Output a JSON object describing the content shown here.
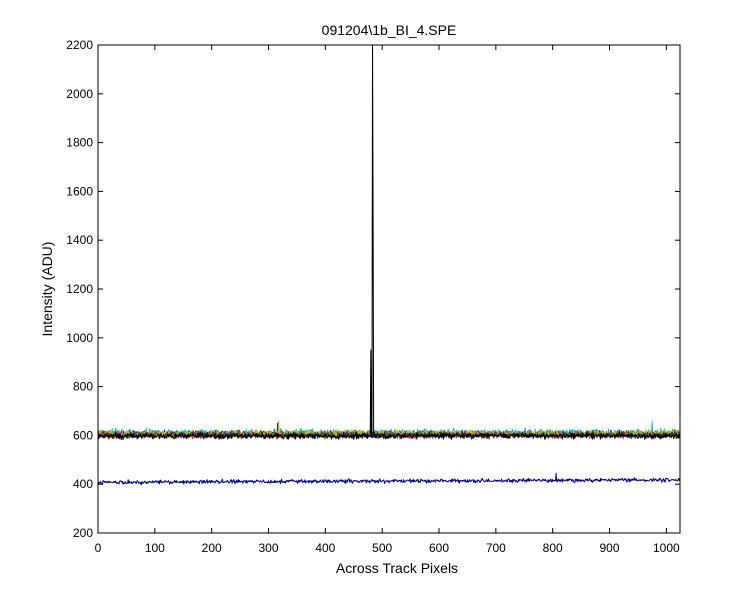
{
  "chart_data": {
    "type": "line",
    "title": "091204\\1b_BI_4.SPE",
    "xlabel": "Across Track Pixels",
    "ylabel": "Intensity (ADU)",
    "xlim": [
      0,
      1024
    ],
    "ylim": [
      200,
      2200
    ],
    "xticks": [
      "0",
      "100",
      "200",
      "300",
      "400",
      "500",
      "600",
      "700",
      "800",
      "900",
      "1000"
    ],
    "yticks": [
      "200",
      "400",
      "600",
      "800",
      "1000",
      "1200",
      "1400",
      "1600",
      "1800",
      "2000",
      "2200"
    ],
    "grid": false,
    "legend": "none",
    "description_note_free": true,
    "series": [
      {
        "color": "#0000ff",
        "baseline": 605,
        "noise": 14,
        "spikes": [
          [
            316,
            650
          ]
        ]
      },
      {
        "color": "#008000",
        "baseline": 606,
        "noise": 14,
        "spikes": []
      },
      {
        "color": "#ff0000",
        "baseline": 603,
        "noise": 13,
        "spikes": []
      },
      {
        "color": "#00bfbf",
        "baseline": 610,
        "noise": 15,
        "spikes": [
          [
            975,
            655
          ]
        ]
      },
      {
        "color": "#bf00bf",
        "baseline": 604,
        "noise": 13,
        "spikes": []
      },
      {
        "color": "#bfbf00",
        "baseline": 607,
        "noise": 14,
        "spikes": [
          [
            318,
            660
          ]
        ]
      },
      {
        "color": "#404040",
        "baseline": 602,
        "noise": 13,
        "spikes": []
      },
      {
        "color": "#000000",
        "baseline": 598,
        "noise": 12,
        "spikes": [
          [
            480,
            950
          ],
          [
            483,
            2200
          ],
          [
            484,
            1480
          ]
        ]
      },
      {
        "color": "#00008b",
        "baseline": 408,
        "noise": 8,
        "spikes": [
          [
            806,
            445
          ]
        ],
        "trend": 10
      }
    ]
  }
}
